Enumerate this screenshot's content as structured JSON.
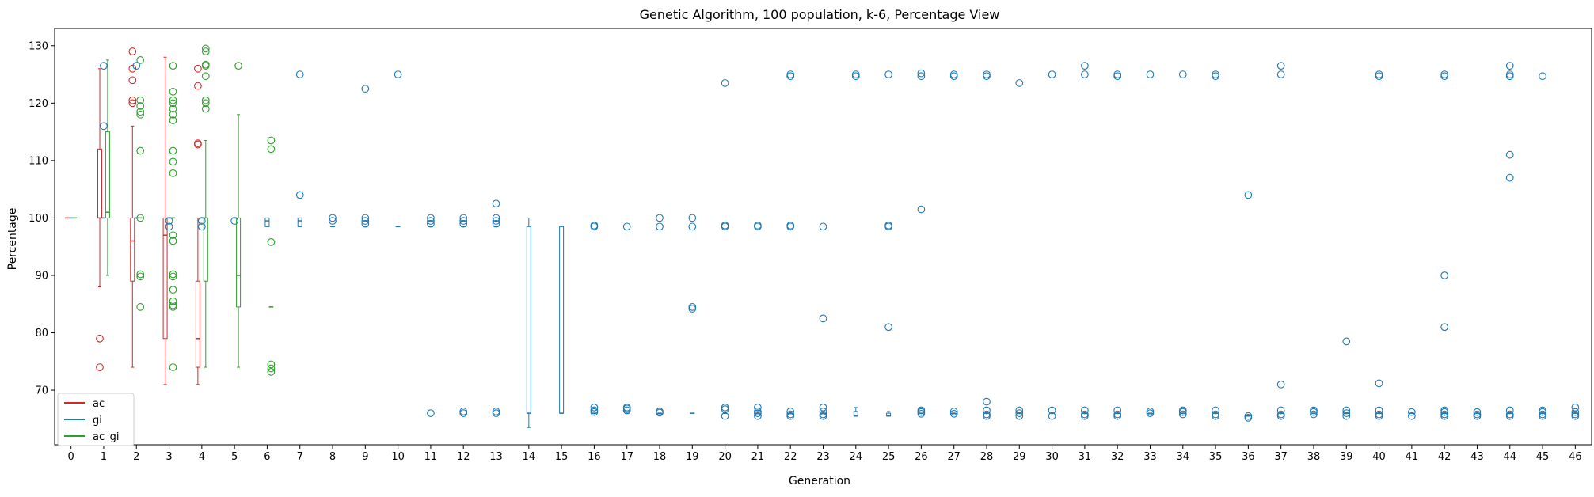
{
  "chart_data": {
    "type": "box",
    "title": "Genetic Algorithm, 100 population, k-6, Percentage View",
    "xlabel": "Generation",
    "ylabel": "Percentage",
    "x_ticks": [
      "0",
      "1",
      "2",
      "3",
      "4",
      "5",
      "6",
      "7",
      "8",
      "9",
      "10",
      "11",
      "12",
      "13",
      "14",
      "15",
      "16",
      "17",
      "18",
      "19",
      "20",
      "21",
      "22",
      "23",
      "24",
      "25",
      "26",
      "27",
      "28",
      "29",
      "30",
      "31",
      "32",
      "33",
      "34",
      "35",
      "36",
      "37",
      "38",
      "39",
      "40",
      "41",
      "42",
      "43",
      "44",
      "45",
      "46"
    ],
    "y_ticks": [
      70,
      80,
      90,
      100,
      110,
      120,
      130
    ],
    "xlim": [
      -0.5,
      46.5
    ],
    "ylim": [
      60.5,
      133
    ],
    "grid": false,
    "legend_position": "lower-left",
    "colors": {
      "ac": "#d62728",
      "gi": "#1f77b4",
      "ac_gi": "#2ca02c"
    },
    "series": [
      {
        "name": "ac",
        "offset": -0.12,
        "boxes": [
          {
            "x": 0,
            "whislo": 100,
            "q1": 100,
            "med": 100,
            "q3": 100,
            "whishi": 100,
            "fliers": []
          },
          {
            "x": 1,
            "whislo": 88,
            "q1": 100,
            "med": 100,
            "q3": 112,
            "whishi": 126,
            "fliers": [
              79,
              74
            ]
          },
          {
            "x": 2,
            "whislo": 74,
            "q1": 89,
            "med": 96,
            "q3": 100,
            "whishi": 116,
            "fliers": [
              129,
              126,
              124,
              120.5,
              120
            ]
          },
          {
            "x": 3,
            "whislo": 71,
            "q1": 79,
            "med": 97,
            "q3": 100,
            "whishi": 128,
            "fliers": []
          },
          {
            "x": 4,
            "whislo": 71,
            "q1": 74,
            "med": 79,
            "q3": 89,
            "whishi": 100,
            "fliers": [
              126,
              123,
              113,
              112.8
            ]
          }
        ]
      },
      {
        "name": "gi",
        "offset": 0,
        "boxes": [
          {
            "x": 0,
            "whislo": 100,
            "q1": 100,
            "med": 100,
            "q3": 100,
            "whishi": 100,
            "fliers": []
          },
          {
            "x": 1,
            "whislo": 100,
            "q1": 100,
            "med": 100,
            "q3": 100,
            "whishi": 100,
            "fliers": [
              126.5,
              116
            ]
          },
          {
            "x": 2,
            "whislo": 100,
            "q1": 100,
            "med": 100,
            "q3": 100,
            "whishi": 100,
            "fliers": [
              126.5
            ]
          },
          {
            "x": 3,
            "whislo": 100,
            "q1": 100,
            "med": 100,
            "q3": 100,
            "whishi": 100,
            "fliers": [
              99.5,
              98.5
            ]
          },
          {
            "x": 4,
            "whislo": 100,
            "q1": 100,
            "med": 100,
            "q3": 100,
            "whishi": 100,
            "fliers": [
              99.5,
              98.5
            ]
          },
          {
            "x": 5,
            "whislo": 100,
            "q1": 100,
            "med": 100,
            "q3": 100,
            "whishi": 100,
            "fliers": [
              99.5
            ]
          },
          {
            "x": 6,
            "whislo": 98.5,
            "q1": 98.5,
            "med": 99.5,
            "q3": 100,
            "whishi": 100,
            "fliers": []
          },
          {
            "x": 7,
            "whislo": 98.5,
            "q1": 98.5,
            "med": 99.5,
            "q3": 100,
            "whishi": 100,
            "fliers": [
              125,
              104
            ]
          },
          {
            "x": 8,
            "whislo": 98.5,
            "q1": 98.5,
            "med": 98.5,
            "q3": 98.5,
            "whishi": 98.5,
            "fliers": [
              100,
              99.5
            ]
          },
          {
            "x": 9,
            "whislo": 98.5,
            "q1": 98.5,
            "med": 98.5,
            "q3": 98.5,
            "whishi": 98.5,
            "fliers": [
              122.5,
              100,
              99.5,
              99
            ]
          },
          {
            "x": 10,
            "whislo": 98.5,
            "q1": 98.5,
            "med": 98.5,
            "q3": 98.5,
            "whishi": 98.5,
            "fliers": [
              125
            ]
          },
          {
            "x": 11,
            "whislo": 98.5,
            "q1": 98.5,
            "med": 98.5,
            "q3": 98.5,
            "whishi": 98.5,
            "fliers": [
              100,
              99.5,
              99,
              66
            ]
          },
          {
            "x": 12,
            "whislo": 98.5,
            "q1": 98.5,
            "med": 98.5,
            "q3": 98.5,
            "whishi": 98.5,
            "fliers": [
              100,
              99.5,
              99,
              66,
              66.3
            ]
          },
          {
            "x": 13,
            "whislo": 98.5,
            "q1": 98.5,
            "med": 98.5,
            "q3": 98.5,
            "whishi": 98.5,
            "fliers": [
              102.5,
              100,
              99.5,
              99,
              66,
              66.3
            ]
          },
          {
            "x": 14,
            "whislo": 63.5,
            "q1": 66,
            "med": 66,
            "q3": 98.5,
            "whishi": 100,
            "fliers": []
          },
          {
            "x": 15,
            "whislo": 66,
            "q1": 66,
            "med": 66,
            "q3": 98.5,
            "whishi": 98.5,
            "fliers": []
          },
          {
            "x": 16,
            "whislo": 66,
            "q1": 66,
            "med": 66,
            "q3": 66,
            "whishi": 66,
            "fliers": [
              98.5,
              98.7,
              67,
              66.5,
              66.2
            ]
          },
          {
            "x": 17,
            "whislo": 66,
            "q1": 66,
            "med": 66,
            "q3": 66,
            "whishi": 66,
            "fliers": [
              98.5,
              67,
              66.8,
              66.5
            ]
          },
          {
            "x": 18,
            "whislo": 66,
            "q1": 66,
            "med": 66,
            "q3": 66,
            "whishi": 66,
            "fliers": [
              100,
              98.5,
              66.3,
              66.1
            ]
          },
          {
            "x": 19,
            "whislo": 66,
            "q1": 66,
            "med": 66,
            "q3": 66,
            "whishi": 66,
            "fliers": [
              100,
              98.5,
              84.5,
              84.2
            ]
          },
          {
            "x": 20,
            "whislo": 66,
            "q1": 66,
            "med": 66,
            "q3": 66,
            "whishi": 66,
            "fliers": [
              123.5,
              98.5,
              98.7,
              67,
              66.7,
              65.5
            ]
          },
          {
            "x": 21,
            "whislo": 66,
            "q1": 66,
            "med": 66,
            "q3": 66,
            "whishi": 66,
            "fliers": [
              98.5,
              98.7,
              67,
              66.3,
              66,
              65.5
            ]
          },
          {
            "x": 22,
            "whislo": 66,
            "q1": 66,
            "med": 66,
            "q3": 66,
            "whishi": 66,
            "fliers": [
              125,
              124.7,
              98.5,
              98.7,
              66.3,
              65.8,
              65.5
            ]
          },
          {
            "x": 23,
            "whislo": 66,
            "q1": 66,
            "med": 66,
            "q3": 66,
            "whishi": 66,
            "fliers": [
              98.5,
              82.5,
              67,
              66.3,
              65.8,
              65.5
            ]
          },
          {
            "x": 24,
            "whislo": 65.5,
            "q1": 65.5,
            "med": 65.5,
            "q3": 66.3,
            "whishi": 67,
            "fliers": [
              125,
              124.7
            ]
          },
          {
            "x": 25,
            "whislo": 65.5,
            "q1": 65.5,
            "med": 65.5,
            "q3": 66,
            "whishi": 66.3,
            "fliers": [
              125,
              98.5,
              98.7,
              81
            ]
          },
          {
            "x": 26,
            "whislo": 66,
            "q1": 66,
            "med": 66,
            "q3": 66,
            "whishi": 66,
            "fliers": [
              125.2,
              124.7,
              101.5,
              66.5,
              66.2,
              65.9
            ]
          },
          {
            "x": 27,
            "whislo": 66,
            "q1": 66,
            "med": 66,
            "q3": 66,
            "whishi": 66,
            "fliers": [
              125,
              124.7,
              66.3,
              65.9
            ]
          },
          {
            "x": 28,
            "whislo": 66,
            "q1": 66,
            "med": 66,
            "q3": 66,
            "whishi": 66,
            "fliers": [
              125,
              124.7,
              68,
              66.5,
              65.8,
              65.5
            ]
          },
          {
            "x": 29,
            "whislo": 66,
            "q1": 66,
            "med": 66,
            "q3": 66,
            "whishi": 66,
            "fliers": [
              123.5,
              66.5,
              66,
              65.5
            ]
          },
          {
            "x": 30,
            "whislo": 66,
            "q1": 66,
            "med": 66,
            "q3": 66,
            "whishi": 66,
            "fliers": [
              125,
              66.5,
              65.5
            ]
          },
          {
            "x": 31,
            "whislo": 66,
            "q1": 66,
            "med": 66,
            "q3": 66,
            "whishi": 66,
            "fliers": [
              126.5,
              125,
              66.5,
              65.8,
              65.5
            ]
          },
          {
            "x": 32,
            "whislo": 66,
            "q1": 66,
            "med": 66,
            "q3": 66,
            "whishi": 66,
            "fliers": [
              125,
              124.7,
              66.5,
              65.8,
              65.5
            ]
          },
          {
            "x": 33,
            "whislo": 66,
            "q1": 66,
            "med": 66,
            "q3": 66,
            "whishi": 66,
            "fliers": [
              125,
              66.3,
              66
            ]
          },
          {
            "x": 34,
            "whislo": 66,
            "q1": 66,
            "med": 66,
            "q3": 66,
            "whishi": 66,
            "fliers": [
              125,
              66.5,
              66.2,
              65.8
            ]
          },
          {
            "x": 35,
            "whislo": 66,
            "q1": 66,
            "med": 66,
            "q3": 66,
            "whishi": 66,
            "fliers": [
              125,
              124.7,
              66.5,
              65.8,
              65.5
            ]
          },
          {
            "x": 36,
            "whislo": 65.5,
            "q1": 65.5,
            "med": 65.5,
            "q3": 65.5,
            "whishi": 65.5,
            "fliers": [
              104,
              65.5,
              65.2
            ]
          },
          {
            "x": 37,
            "whislo": 66,
            "q1": 66,
            "med": 66,
            "q3": 66,
            "whishi": 66,
            "fliers": [
              126.5,
              125,
              71,
              66.5,
              65.8,
              65.5
            ]
          },
          {
            "x": 38,
            "whislo": 66,
            "q1": 66,
            "med": 66,
            "q3": 66,
            "whishi": 66,
            "fliers": [
              66.5,
              66.2,
              65.8
            ]
          },
          {
            "x": 39,
            "whislo": 66,
            "q1": 66,
            "med": 66,
            "q3": 66,
            "whishi": 66,
            "fliers": [
              78.5,
              66.5,
              66,
              65.5
            ]
          },
          {
            "x": 40,
            "whislo": 66,
            "q1": 66,
            "med": 66,
            "q3": 66,
            "whishi": 66,
            "fliers": [
              125,
              124.7,
              71.2,
              66.5,
              65.8,
              65.5
            ]
          },
          {
            "x": 41,
            "whislo": 66,
            "q1": 66,
            "med": 66,
            "q3": 66,
            "whishi": 66,
            "fliers": [
              66.2,
              65.5
            ]
          },
          {
            "x": 42,
            "whislo": 66,
            "q1": 66,
            "med": 66,
            "q3": 66,
            "whishi": 66,
            "fliers": [
              125,
              124.7,
              90,
              81,
              66.5,
              66.2,
              65.8,
              65.5
            ]
          },
          {
            "x": 43,
            "whislo": 66,
            "q1": 66,
            "med": 66,
            "q3": 66,
            "whishi": 66,
            "fliers": [
              66.2,
              65.8,
              65.5
            ]
          },
          {
            "x": 44,
            "whislo": 66,
            "q1": 66,
            "med": 66,
            "q3": 66,
            "whishi": 66,
            "fliers": [
              126.5,
              125,
              124.7,
              111,
              107,
              66.5,
              65.8,
              65.5
            ]
          },
          {
            "x": 45,
            "whislo": 66,
            "q1": 66,
            "med": 66,
            "q3": 66,
            "whishi": 66,
            "fliers": [
              124.7,
              66.5,
              66.2,
              65.8,
              65.5
            ]
          },
          {
            "x": 46,
            "whislo": 66,
            "q1": 66,
            "med": 66,
            "q3": 66,
            "whishi": 66,
            "fliers": [
              67,
              66.2,
              65.8,
              65.5
            ]
          }
        ]
      },
      {
        "name": "ac_gi",
        "offset": 0.12,
        "boxes": [
          {
            "x": 0,
            "whislo": 100,
            "q1": 100,
            "med": 100,
            "q3": 100,
            "whishi": 100,
            "fliers": []
          },
          {
            "x": 1,
            "whislo": 90,
            "q1": 100,
            "med": 101,
            "q3": 115,
            "whishi": 127.5,
            "fliers": []
          },
          {
            "x": 2,
            "whislo": 100,
            "q1": 100,
            "med": 100,
            "q3": 100,
            "whishi": 100,
            "fliers": [
              127.5,
              120.5,
              119.5,
              118.5,
              118,
              111.7,
              100,
              90.2,
              89.8,
              84.5
            ]
          },
          {
            "x": 3,
            "whislo": 100,
            "q1": 100,
            "med": 100,
            "q3": 100,
            "whishi": 100,
            "fliers": [
              126.5,
              122,
              120.5,
              120,
              119,
              118,
              117,
              111.7,
              109.8,
              107.8,
              97,
              96,
              90.2,
              89.8,
              87.5,
              85.5,
              84.8,
              84.5,
              74
            ]
          },
          {
            "x": 4,
            "whislo": 74,
            "q1": 89,
            "med": 100,
            "q3": 100,
            "whishi": 113.5,
            "fliers": [
              129.5,
              129,
              126.7,
              126.5,
              124.7,
              120.5,
              120,
              119
            ]
          },
          {
            "x": 5,
            "whislo": 74,
            "q1": 84.5,
            "med": 90,
            "q3": 100,
            "whishi": 118,
            "fliers": [
              126.5
            ]
          },
          {
            "x": 6,
            "whislo": 84.5,
            "q1": 84.5,
            "med": 84.5,
            "q3": 84.5,
            "whishi": 84.5,
            "fliers": [
              113.5,
              112,
              95.8,
              74.5,
              73.8,
              73.2
            ]
          }
        ]
      }
    ]
  }
}
